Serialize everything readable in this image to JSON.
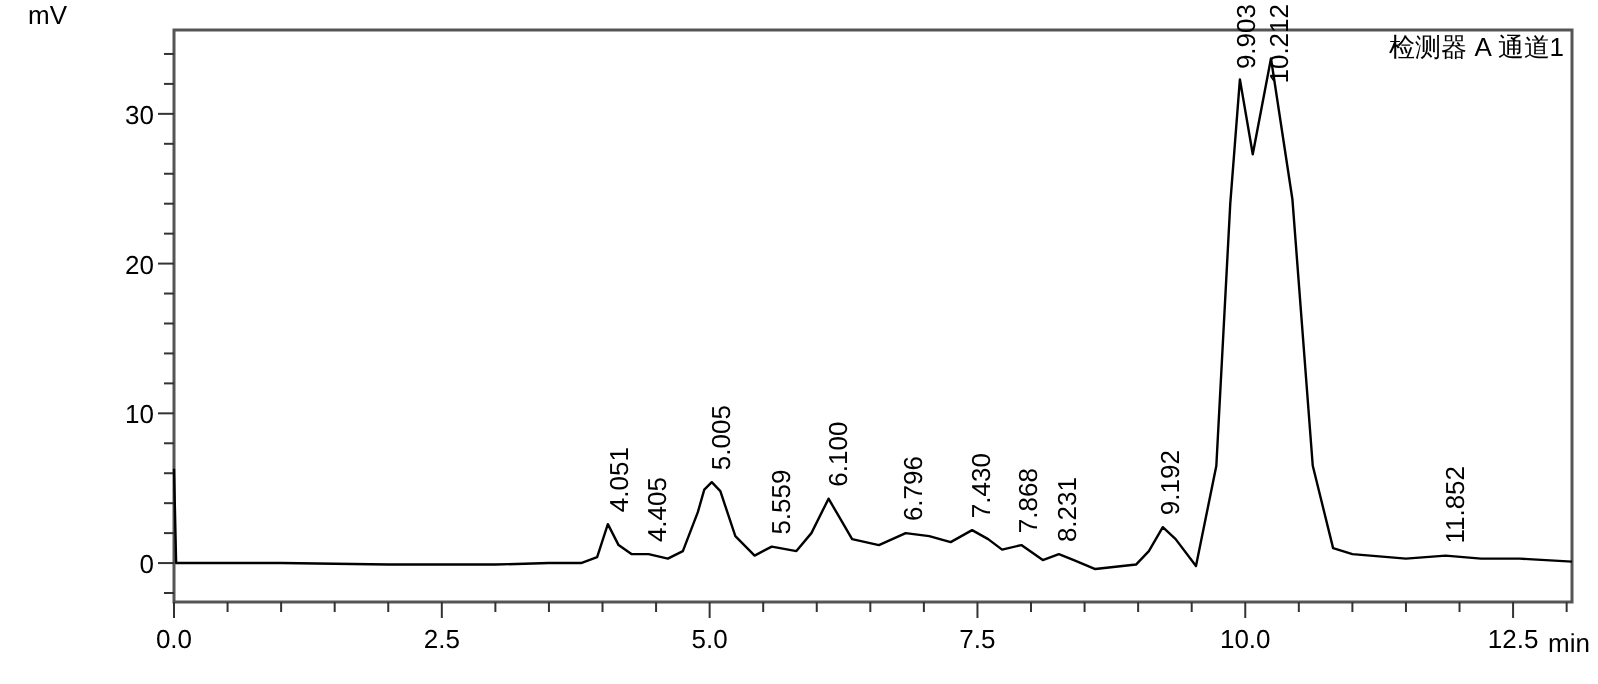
{
  "chart_data": {
    "type": "line",
    "title": "检测器 A 通道1",
    "xlabel": "min",
    "ylabel": "mV",
    "color": "#000000",
    "xlim": [
      0,
      13.05
    ],
    "ylim": [
      -2.6,
      35.6
    ],
    "xticks": [
      {
        "value": 0,
        "label": "0.0"
      },
      {
        "value": 0.5,
        "label": null
      },
      {
        "value": 1,
        "label": null
      },
      {
        "value": 1.5,
        "label": null
      },
      {
        "value": 2,
        "label": null
      },
      2.5,
      {
        "value": 3,
        "label": null
      },
      {
        "value": 3.5,
        "label": null
      },
      {
        "value": 4,
        "label": null
      },
      {
        "value": 4.5,
        "label": null
      },
      {
        "value": 5,
        "label": "5.0"
      },
      {
        "value": 5.5,
        "label": null
      },
      {
        "value": 6,
        "label": null
      },
      {
        "value": 6.5,
        "label": null
      },
      {
        "value": 7,
        "label": null
      },
      7.5,
      {
        "value": 8,
        "label": null
      },
      {
        "value": 8.5,
        "label": null
      },
      {
        "value": 9,
        "label": null
      },
      {
        "value": 9.5,
        "label": null
      },
      {
        "value": 10,
        "label": "10.0"
      },
      {
        "value": 10.5,
        "label": null
      },
      {
        "value": 11,
        "label": null
      },
      {
        "value": 11.5,
        "label": null
      },
      {
        "value": 12,
        "label": null
      },
      12.5,
      {
        "value": 13,
        "label": null
      }
    ],
    "yticks": [
      {
        "value": -2,
        "label": null
      },
      0,
      {
        "value": 2,
        "label": null
      },
      {
        "value": 4,
        "label": null
      },
      {
        "value": 6,
        "label": null
      },
      {
        "value": 8,
        "label": null
      },
      10,
      {
        "value": 12,
        "label": null
      },
      {
        "value": 14,
        "label": null
      },
      {
        "value": 16,
        "label": null
      },
      {
        "value": 18,
        "label": null
      },
      20,
      {
        "value": 22,
        "label": null
      },
      {
        "value": 24,
        "label": null
      },
      {
        "value": 26,
        "label": null
      },
      {
        "value": 28,
        "label": null
      },
      30,
      {
        "value": 32,
        "label": null
      },
      {
        "value": 34,
        "label": null
      }
    ],
    "x": [
      0,
      0.02,
      1,
      2,
      3,
      3.5,
      3.8,
      3.95,
      4.05,
      4.15,
      4.27,
      4.43,
      4.61,
      4.75,
      4.89,
      4.95,
      5.02,
      5.1,
      5.24,
      5.42,
      5.58,
      5.81,
      5.95,
      6.11,
      6.2,
      6.33,
      6.58,
      6.83,
      7.05,
      7.25,
      7.45,
      7.6,
      7.73,
      7.91,
      8.11,
      8.26,
      8.4,
      8.6,
      8.98,
      9.1,
      9.23,
      9.35,
      9.54,
      9.73,
      9.86,
      9.95,
      10.07,
      10.24,
      10.44,
      10.63,
      10.82,
      11.0,
      11.5,
      11.87,
      12.2,
      12.56,
      13.05
    ],
    "values": [
      6.3,
      0,
      0,
      -0.1,
      -0.1,
      0,
      0,
      0.4,
      2.6,
      1.2,
      0.6,
      0.6,
      0.3,
      0.8,
      3.4,
      4.9,
      5.4,
      4.8,
      1.8,
      0.5,
      1.1,
      0.8,
      2.0,
      4.3,
      3.2,
      1.6,
      1.2,
      2.0,
      1.8,
      1.4,
      2.2,
      1.6,
      0.9,
      1.2,
      0.2,
      0.6,
      0.2,
      -0.4,
      -0.1,
      0.8,
      2.4,
      1.6,
      -0.2,
      6.5,
      24.0,
      32.3,
      27.3,
      33.7,
      24.3,
      6.5,
      1.0,
      0.6,
      0.3,
      0.5,
      0.3,
      0.3,
      0.1
    ],
    "annotations": [
      {
        "text": "4.051",
        "x": 4.051,
        "y": 2.6
      },
      {
        "text": "4.405",
        "x": 4.405,
        "y": 0.6
      },
      {
        "text": "5.005",
        "x": 5.005,
        "y": 5.4
      },
      {
        "text": "5.559",
        "x": 5.559,
        "y": 1.1
      },
      {
        "text": "6.100",
        "x": 6.1,
        "y": 4.3
      },
      {
        "text": "6.796",
        "x": 6.796,
        "y": 2.0
      },
      {
        "text": "7.430",
        "x": 7.43,
        "y": 2.2
      },
      {
        "text": "7.868",
        "x": 7.868,
        "y": 1.2
      },
      {
        "text": "8.231",
        "x": 8.231,
        "y": 0.6
      },
      {
        "text": "9.192",
        "x": 9.192,
        "y": 2.4
      },
      {
        "text": "9.903",
        "x": 9.903,
        "y": 32.3
      },
      {
        "text": "10.212",
        "x": 10.212,
        "y": 33.7
      },
      {
        "text": "11.852",
        "x": 11.852,
        "y": 0.5
      }
    ]
  }
}
